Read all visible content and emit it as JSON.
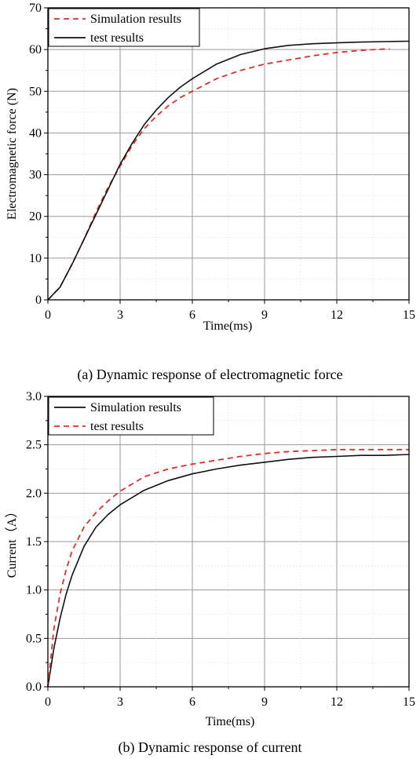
{
  "chart_data": [
    {
      "type": "line",
      "xlabel": "Time(ms)",
      "ylabel": "Electromagnetic force (N)",
      "xlim": [
        0,
        15
      ],
      "ylim": [
        0,
        70
      ],
      "xticks": [
        0,
        3,
        6,
        9,
        12,
        15
      ],
      "yticks": [
        0,
        10,
        20,
        30,
        40,
        50,
        60,
        70
      ],
      "grid": true,
      "legend_position": "top-left",
      "series": [
        {
          "name": "Simulation results",
          "color": "#d9302b",
          "style": "dashed",
          "x": [
            0,
            0.5,
            1,
            1.5,
            2,
            2.5,
            3,
            3.5,
            4,
            4.5,
            5,
            5.5,
            6,
            7,
            8,
            9,
            10,
            11,
            12,
            13,
            14.2
          ],
          "y": [
            0,
            3,
            8.5,
            14.5,
            21,
            27,
            32,
            37,
            41,
            44,
            46.5,
            48.5,
            50,
            53,
            55,
            56.5,
            57.5,
            58.5,
            59.3,
            59.8,
            60.2
          ]
        },
        {
          "name": "test results",
          "color": "#111111",
          "style": "solid",
          "x": [
            0,
            0.5,
            1,
            1.5,
            2,
            2.5,
            3,
            3.5,
            4,
            4.5,
            5,
            5.5,
            6,
            7,
            8,
            9,
            10,
            11,
            12,
            13,
            14,
            15
          ],
          "y": [
            0,
            3,
            8.5,
            14.5,
            20.5,
            26.5,
            32.5,
            37.5,
            42,
            45.5,
            48.5,
            51,
            53,
            56.5,
            58.8,
            60.2,
            61,
            61.4,
            61.6,
            61.8,
            61.9,
            62
          ]
        }
      ]
    },
    {
      "type": "line",
      "xlabel": "Time(ms)",
      "ylabel": "Current（A）",
      "xlim": [
        0,
        15
      ],
      "ylim": [
        0,
        3.0
      ],
      "xticks": [
        0,
        3,
        6,
        9,
        12,
        15
      ],
      "yticks": [
        0.0,
        0.5,
        1.0,
        1.5,
        2.0,
        2.5,
        3.0
      ],
      "grid": true,
      "legend_position": "top-left",
      "series": [
        {
          "name": "Simulation results",
          "color": "#111111",
          "style": "solid",
          "x": [
            0,
            0.25,
            0.5,
            0.75,
            1,
            1.5,
            2,
            2.5,
            3,
            4,
            5,
            6,
            7,
            8,
            9,
            10,
            11,
            12,
            13,
            14,
            15
          ],
          "y": [
            0,
            0.4,
            0.7,
            0.95,
            1.15,
            1.45,
            1.65,
            1.78,
            1.88,
            2.03,
            2.13,
            2.2,
            2.25,
            2.29,
            2.32,
            2.35,
            2.37,
            2.38,
            2.39,
            2.39,
            2.4
          ]
        },
        {
          "name": "test results",
          "color": "#d9302b",
          "style": "dashed",
          "x": [
            0,
            0.25,
            0.5,
            0.75,
            1,
            1.5,
            2,
            2.5,
            3,
            4,
            5,
            6,
            7,
            8,
            9,
            10,
            11,
            12,
            13,
            14,
            15
          ],
          "y": [
            0,
            0.6,
            0.95,
            1.2,
            1.4,
            1.65,
            1.8,
            1.92,
            2.02,
            2.17,
            2.25,
            2.3,
            2.34,
            2.38,
            2.41,
            2.43,
            2.44,
            2.45,
            2.45,
            2.45,
            2.45
          ]
        }
      ]
    }
  ],
  "captions": {
    "a": "(a) Dynamic response of electromagnetic force",
    "b": "(b) Dynamic response of current"
  }
}
